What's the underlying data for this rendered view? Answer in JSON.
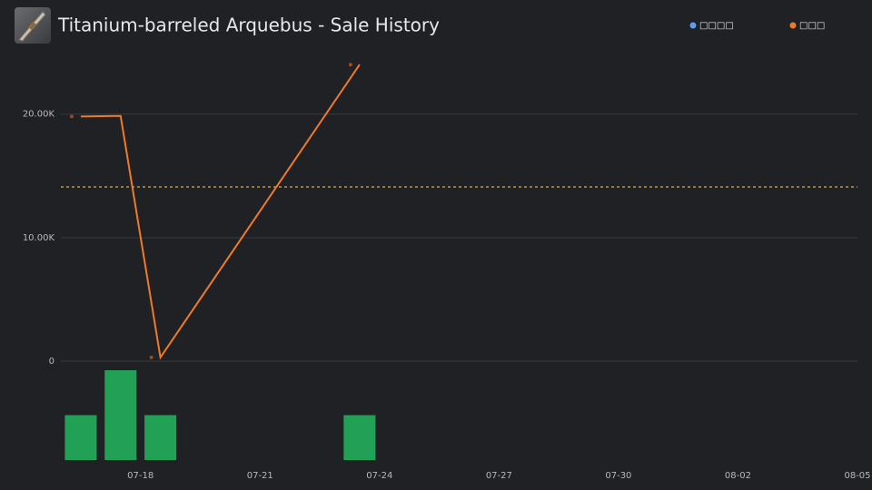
{
  "chart_data": {
    "type": "line",
    "title": "Titanium-barreled Arquebus - Sale History",
    "legend": [
      {
        "name": "□□□□",
        "color": "#5b9cf5"
      },
      {
        "name": "□□□",
        "color": "#f07a28"
      }
    ],
    "x": [
      "07-16",
      "07-17",
      "07-18",
      "07-23"
    ],
    "series": [
      {
        "name": "□□□",
        "color": "#f07a28",
        "values": [
          19800,
          19850,
          300,
          24000
        ]
      }
    ],
    "markers": {
      "x": [
        "07-16",
        "07-18",
        "07-23"
      ],
      "values": [
        19800,
        300,
        24000
      ],
      "color": "#a04a1c"
    },
    "average": 14100,
    "average_color": "#e8b020",
    "volume": {
      "values": [
        1,
        2,
        1,
        1
      ],
      "color": "#22a055",
      "ylim": [
        0,
        2
      ]
    },
    "xlim": [
      "07-16",
      "08-05"
    ],
    "xticks": [
      "07-18",
      "07-21",
      "07-24",
      "07-27",
      "07-30",
      "08-02",
      "08-05"
    ],
    "ylim": [
      0,
      26000
    ],
    "yticks": [
      0,
      {
        "value": 10000,
        "label": "10.00K"
      },
      {
        "value": 20000,
        "label": "20.00K"
      }
    ],
    "grid": true
  }
}
